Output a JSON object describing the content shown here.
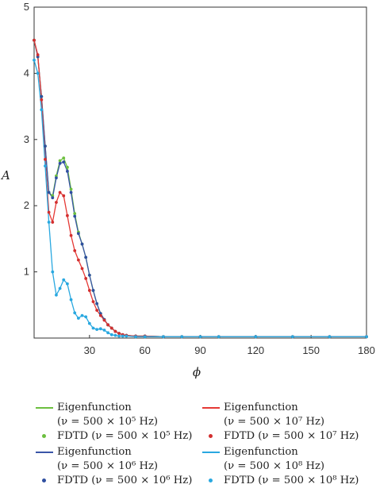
{
  "chart_data": {
    "type": "line",
    "xlabel": "ϕ",
    "ylabel": "A",
    "xlim": [
      0,
      180
    ],
    "ylim": [
      0,
      5
    ],
    "x_ticks": [
      "30",
      "60",
      "90",
      "120",
      "150",
      "180"
    ],
    "y_ticks": [
      "1",
      "2",
      "3",
      "4",
      "5"
    ],
    "grid": false,
    "legend_position": "bottom",
    "series": [
      {
        "name": "Eigenfunction (ν = 500 × 10⁵ Hz)",
        "style": "line",
        "color": "#6cbf3f",
        "x": [
          0,
          2,
          4,
          6,
          8,
          10,
          12,
          14,
          16,
          18,
          20,
          22,
          24,
          26,
          28,
          30,
          32,
          34,
          36,
          38,
          40,
          42,
          44,
          46,
          48,
          50,
          55,
          60,
          70,
          80,
          90,
          100,
          120,
          140,
          160,
          180
        ],
        "y": [
          4.5,
          4.25,
          3.65,
          2.9,
          2.2,
          2.15,
          2.45,
          2.68,
          2.72,
          2.58,
          2.25,
          1.88,
          1.6,
          1.42,
          1.22,
          0.95,
          0.72,
          0.52,
          0.37,
          0.28,
          0.2,
          0.15,
          0.1,
          0.07,
          0.05,
          0.04,
          0.03,
          0.03,
          0.02,
          0.02,
          0.02,
          0.02,
          0.02,
          0.02,
          0.02,
          0.02
        ]
      },
      {
        "name": "FDTD (ν = 500 × 10⁵ Hz)",
        "style": "points",
        "color": "#6cbf3f",
        "x": [
          0,
          2,
          4,
          6,
          8,
          10,
          12,
          14,
          16,
          18,
          20,
          22,
          24,
          26,
          28,
          30,
          32,
          34,
          36,
          38,
          40,
          42,
          44,
          46,
          48,
          50,
          55,
          60,
          70,
          80,
          90,
          100,
          120,
          140,
          160,
          180
        ],
        "y": [
          4.5,
          4.25,
          3.65,
          2.9,
          2.2,
          2.15,
          2.45,
          2.68,
          2.72,
          2.58,
          2.25,
          1.88,
          1.6,
          1.42,
          1.22,
          0.95,
          0.72,
          0.52,
          0.37,
          0.28,
          0.2,
          0.15,
          0.1,
          0.07,
          0.05,
          0.04,
          0.03,
          0.03,
          0.02,
          0.02,
          0.02,
          0.02,
          0.02,
          0.02,
          0.02,
          0.02
        ]
      },
      {
        "name": "Eigenfunction (ν = 500 × 10⁶ Hz)",
        "style": "line",
        "color": "#3a55a8",
        "x": [
          0,
          2,
          4,
          6,
          8,
          10,
          12,
          14,
          16,
          18,
          20,
          22,
          24,
          26,
          28,
          30,
          32,
          34,
          36,
          38,
          40,
          42,
          44,
          46,
          48,
          50,
          55,
          60,
          70,
          80,
          90,
          100,
          120,
          140,
          160,
          180
        ],
        "y": [
          4.5,
          4.25,
          3.65,
          2.9,
          2.2,
          2.12,
          2.42,
          2.64,
          2.66,
          2.52,
          2.2,
          1.84,
          1.58,
          1.42,
          1.22,
          0.95,
          0.72,
          0.52,
          0.37,
          0.28,
          0.2,
          0.15,
          0.1,
          0.07,
          0.05,
          0.04,
          0.03,
          0.03,
          0.02,
          0.02,
          0.02,
          0.02,
          0.02,
          0.02,
          0.02,
          0.02
        ]
      },
      {
        "name": "FDTD (ν = 500 × 10⁶ Hz)",
        "style": "points",
        "color": "#2f4fa0",
        "x": [
          0,
          2,
          4,
          6,
          8,
          10,
          12,
          14,
          16,
          18,
          20,
          22,
          24,
          26,
          28,
          30,
          32,
          34,
          36,
          38,
          40,
          42,
          44,
          46,
          48,
          50,
          55,
          60,
          70,
          80,
          90,
          100,
          120,
          140,
          160,
          180
        ],
        "y": [
          4.5,
          4.25,
          3.65,
          2.9,
          2.2,
          2.12,
          2.42,
          2.64,
          2.66,
          2.52,
          2.2,
          1.84,
          1.58,
          1.42,
          1.22,
          0.95,
          0.72,
          0.52,
          0.37,
          0.28,
          0.2,
          0.15,
          0.1,
          0.07,
          0.05,
          0.04,
          0.03,
          0.03,
          0.02,
          0.02,
          0.02,
          0.02,
          0.02,
          0.02,
          0.02,
          0.02
        ]
      },
      {
        "name": "Eigenfunction (ν = 500 × 10⁷ Hz)",
        "style": "line",
        "color": "#e53935",
        "x": [
          0,
          2,
          4,
          6,
          8,
          10,
          12,
          14,
          16,
          18,
          20,
          22,
          24,
          26,
          28,
          30,
          32,
          34,
          36,
          38,
          40,
          42,
          44,
          46,
          48,
          50,
          55,
          60,
          70,
          80,
          90,
          100,
          120,
          140,
          160,
          180
        ],
        "y": [
          4.5,
          4.28,
          3.6,
          2.7,
          1.9,
          1.75,
          2.05,
          2.2,
          2.15,
          1.85,
          1.55,
          1.32,
          1.18,
          1.05,
          0.9,
          0.72,
          0.55,
          0.42,
          0.34,
          0.27,
          0.2,
          0.15,
          0.1,
          0.07,
          0.05,
          0.04,
          0.03,
          0.03,
          0.02,
          0.02,
          0.02,
          0.02,
          0.02,
          0.02,
          0.02,
          0.02
        ]
      },
      {
        "name": "FDTD (ν = 500 × 10⁷ Hz)",
        "style": "points",
        "color": "#d32f2f",
        "x": [
          0,
          2,
          4,
          6,
          8,
          10,
          12,
          14,
          16,
          18,
          20,
          22,
          24,
          26,
          28,
          30,
          32,
          34,
          36,
          38,
          40,
          42,
          44,
          46,
          48,
          50,
          55,
          60,
          70,
          80,
          90,
          100,
          120,
          140,
          160,
          180
        ],
        "y": [
          4.5,
          4.28,
          3.6,
          2.7,
          1.9,
          1.75,
          2.05,
          2.2,
          2.15,
          1.85,
          1.55,
          1.32,
          1.18,
          1.05,
          0.9,
          0.72,
          0.55,
          0.42,
          0.34,
          0.27,
          0.2,
          0.15,
          0.1,
          0.07,
          0.05,
          0.04,
          0.03,
          0.03,
          0.02,
          0.02,
          0.02,
          0.02,
          0.02,
          0.02,
          0.02,
          0.02
        ]
      },
      {
        "name": "Eigenfunction (ν = 500 × 10⁸ Hz)",
        "style": "line",
        "color": "#29a8e0",
        "x": [
          0,
          2,
          4,
          6,
          8,
          10,
          12,
          14,
          16,
          18,
          20,
          22,
          24,
          26,
          28,
          30,
          32,
          34,
          36,
          38,
          40,
          42,
          44,
          46,
          48,
          50,
          55,
          60,
          70,
          80,
          90,
          100,
          120,
          140,
          160,
          180
        ],
        "y": [
          4.2,
          4.0,
          3.45,
          2.6,
          1.75,
          1.0,
          0.65,
          0.75,
          0.88,
          0.82,
          0.58,
          0.38,
          0.3,
          0.34,
          0.32,
          0.22,
          0.15,
          0.13,
          0.14,
          0.12,
          0.08,
          0.05,
          0.04,
          0.03,
          0.03,
          0.03,
          0.02,
          0.02,
          0.02,
          0.02,
          0.02,
          0.02,
          0.02,
          0.02,
          0.02,
          0.02
        ]
      },
      {
        "name": "FDTD (ν = 500 × 10⁸ Hz)",
        "style": "points",
        "color": "#29a8e0",
        "x": [
          0,
          2,
          4,
          6,
          8,
          10,
          12,
          14,
          16,
          18,
          20,
          22,
          24,
          26,
          28,
          30,
          32,
          34,
          36,
          38,
          40,
          42,
          44,
          46,
          48,
          50,
          55,
          60,
          70,
          80,
          90,
          100,
          120,
          140,
          160,
          180
        ],
        "y": [
          4.2,
          4.0,
          3.45,
          2.6,
          1.75,
          1.0,
          0.65,
          0.75,
          0.88,
          0.82,
          0.58,
          0.38,
          0.3,
          0.34,
          0.32,
          0.22,
          0.15,
          0.13,
          0.14,
          0.12,
          0.08,
          0.05,
          0.04,
          0.03,
          0.03,
          0.03,
          0.02,
          0.02,
          0.02,
          0.02,
          0.02,
          0.02,
          0.02,
          0.02,
          0.02,
          0.02
        ]
      }
    ]
  },
  "legend": {
    "items": [
      {
        "kind": "line",
        "color": "#6cbf3f",
        "line1": "Eigenfunction",
        "line2": "(ν = 500 × 10⁵ Hz)"
      },
      {
        "kind": "line",
        "color": "#e53935",
        "line1": "Eigenfunction",
        "line2": "(ν = 500 × 10⁷ Hz)"
      },
      {
        "kind": "dot",
        "color": "#6cbf3f",
        "line1": "FDTD (ν = 500 × 10⁵ Hz)"
      },
      {
        "kind": "dot",
        "color": "#d32f2f",
        "line1": "FDTD (ν = 500 × 10⁷ Hz)"
      },
      {
        "kind": "line",
        "color": "#3a55a8",
        "line1": "Eigenfunction",
        "line2": "(ν = 500 × 10⁶ Hz)"
      },
      {
        "kind": "line",
        "color": "#29a8e0",
        "line1": "Eigenfunction",
        "line2": "(ν = 500 × 10⁸ Hz)"
      },
      {
        "kind": "dot",
        "color": "#2f4fa0",
        "line1": "FDTD (ν = 500 × 10⁶ Hz)"
      },
      {
        "kind": "dot",
        "color": "#29a8e0",
        "line1": "FDTD (ν = 500 × 10⁸ Hz)"
      }
    ]
  }
}
